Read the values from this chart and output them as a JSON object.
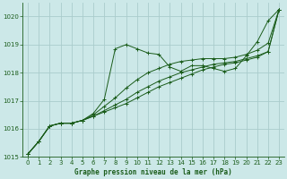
{
  "title": "Graphe pression niveau de la mer (hPa)",
  "background_color": "#cce8e8",
  "grid_color": "#aacccc",
  "line_color": "#1a5c1a",
  "xlim": [
    -0.5,
    23.5
  ],
  "ylim": [
    1015.0,
    1020.5
  ],
  "yticks": [
    1015,
    1016,
    1017,
    1018,
    1019,
    1020
  ],
  "xticks": [
    0,
    1,
    2,
    3,
    4,
    5,
    6,
    7,
    8,
    9,
    10,
    11,
    12,
    13,
    14,
    15,
    16,
    17,
    18,
    19,
    20,
    21,
    22,
    23
  ],
  "series": [
    {
      "x": [
        0,
        1,
        2,
        3,
        4,
        5,
        6,
        7,
        8,
        9,
        10,
        11,
        12,
        13,
        14,
        15,
        16,
        17,
        18,
        19,
        20,
        21,
        22,
        23
      ],
      "y": [
        1015.1,
        1015.55,
        1016.1,
        1016.2,
        1016.2,
        1016.3,
        1016.55,
        1017.05,
        1018.85,
        1019.0,
        1018.85,
        1018.7,
        1018.65,
        1018.2,
        1018.05,
        1018.25,
        1018.25,
        1018.15,
        1018.05,
        1018.15,
        1018.6,
        1019.1,
        1019.85,
        1020.25
      ]
    },
    {
      "x": [
        0,
        1,
        2,
        3,
        4,
        5,
        6,
        7,
        8,
        9,
        10,
        11,
        12,
        13,
        14,
        15,
        16,
        17,
        18,
        19,
        20,
        21,
        22,
        23
      ],
      "y": [
        1015.1,
        1015.55,
        1016.1,
        1016.2,
        1016.2,
        1016.3,
        1016.5,
        1016.8,
        1017.1,
        1017.45,
        1017.75,
        1018.0,
        1018.15,
        1018.3,
        1018.4,
        1018.45,
        1018.5,
        1018.5,
        1018.5,
        1018.55,
        1018.65,
        1018.8,
        1019.05,
        1020.25
      ]
    },
    {
      "x": [
        0,
        1,
        2,
        3,
        4,
        5,
        6,
        7,
        8,
        9,
        10,
        11,
        12,
        13,
        14,
        15,
        16,
        17,
        18,
        19,
        20,
        21,
        22,
        23
      ],
      "y": [
        1015.1,
        1015.55,
        1016.1,
        1016.2,
        1016.2,
        1016.3,
        1016.45,
        1016.65,
        1016.85,
        1017.05,
        1017.3,
        1017.5,
        1017.7,
        1017.85,
        1018.0,
        1018.1,
        1018.2,
        1018.3,
        1018.35,
        1018.4,
        1018.5,
        1018.6,
        1018.75,
        1020.25
      ]
    },
    {
      "x": [
        0,
        1,
        2,
        3,
        4,
        5,
        6,
        7,
        8,
        9,
        10,
        11,
        12,
        13,
        14,
        15,
        16,
        17,
        18,
        19,
        20,
        21,
        22,
        23
      ],
      "y": [
        1015.1,
        1015.55,
        1016.1,
        1016.2,
        1016.2,
        1016.3,
        1016.45,
        1016.6,
        1016.75,
        1016.9,
        1017.1,
        1017.3,
        1017.5,
        1017.65,
        1017.8,
        1017.95,
        1018.1,
        1018.2,
        1018.3,
        1018.35,
        1018.45,
        1018.55,
        1018.75,
        1020.25
      ]
    }
  ]
}
